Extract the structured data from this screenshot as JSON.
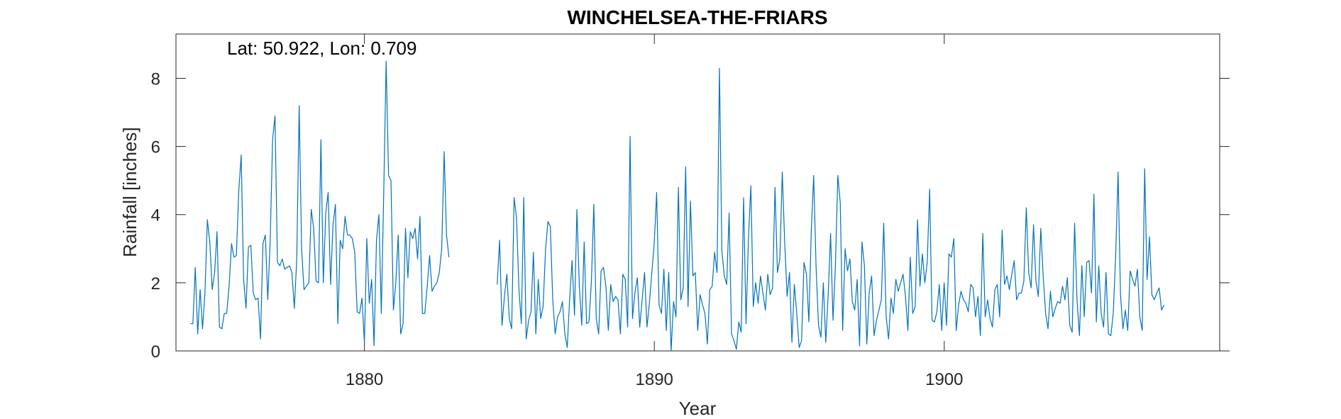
{
  "chart_data": {
    "type": "line",
    "title": "WINCHELSEA-THE-FRIARS",
    "xlabel": "Year",
    "ylabel": "Rainfall [inches]",
    "annotation": "Lat: 50.922, Lon: 0.709",
    "xlim": [
      1873.5,
      1909.5
    ],
    "ylim": [
      0,
      9.3
    ],
    "xticks": [
      1880,
      1890,
      1900
    ],
    "yticks": [
      0,
      2,
      4,
      6,
      8
    ],
    "grid": false,
    "line_color": "#0072BD",
    "series": [
      {
        "segments": [
          {
            "start": 1874.0,
            "step": 0.08333,
            "values": [
              0.8,
              0.8,
              2.45,
              0.5,
              1.8,
              0.65,
              1.7,
              3.85,
              3.2,
              1.8,
              2.3,
              3.5,
              0.7,
              0.65,
              1.1,
              1.1,
              1.9,
              3.15,
              2.75,
              2.8,
              4.7,
              5.75,
              2.1,
              1.25,
              3.05,
              3.1,
              1.7,
              1.5,
              1.55,
              0.35,
              3.15,
              3.4,
              1.5,
              3.2,
              6.2,
              6.9,
              2.6,
              2.5,
              2.7,
              2.4,
              2.45,
              2.5,
              2.3,
              1.25,
              2.7,
              7.2,
              3.0,
              1.8,
              1.9,
              2.0,
              4.15,
              3.6,
              2.05,
              2.0,
              6.2,
              2.0,
              4.05,
              4.65,
              1.95,
              3.7,
              4.3,
              0.8,
              3.25,
              3.0,
              3.95,
              3.4,
              3.4,
              3.3,
              2.9,
              1.15,
              1.1,
              1.55,
              0.25,
              3.3,
              1.4,
              2.1,
              0.15,
              3.25,
              4.0,
              1.1,
              4.65,
              8.5,
              5.15,
              5.0,
              1.2,
              2.0,
              3.4,
              0.5,
              0.8,
              3.6,
              2.15,
              3.5,
              3.3,
              3.6,
              2.7,
              3.95,
              1.1,
              1.1,
              1.9,
              2.8,
              1.75,
              1.9,
              2.0,
              2.3,
              3.0,
              5.85,
              3.4,
              2.75
            ]
          },
          {
            "start": 1884.58,
            "step": 0.08333,
            "values": [
              1.95,
              3.25,
              0.75,
              1.6,
              2.25,
              0.95,
              0.65,
              4.5,
              3.9,
              1.8,
              0.8,
              4.5,
              0.35,
              0.9,
              1.15,
              2.9,
              0.5,
              2.1,
              0.95,
              1.3,
              2.95,
              3.8,
              3.65,
              1.5,
              0.5,
              1.0,
              1.15,
              1.45,
              0.5,
              0.1,
              1.55,
              2.65,
              1.05,
              4.15,
              1.9,
              0.75,
              3.2,
              0.8,
              0.85,
              2.05,
              4.3,
              0.95,
              0.5,
              2.35,
              2.45,
              1.9,
              0.6,
              1.95,
              1.45,
              1.6,
              1.5,
              0.5,
              2.25,
              2.1,
              0.7,
              6.3,
              0.95,
              1.7,
              2.15,
              0.7,
              1.5,
              2.3,
              0.7,
              1.4,
              2.3,
              3.15,
              4.65,
              1.35,
              1.1,
              2.4,
              0.6,
              2.3,
              0.0,
              1.45,
              1.0,
              4.8,
              1.5,
              1.85,
              5.4,
              1.3,
              4.4,
              2.2,
              2.3,
              0.6,
              1.65,
              1.35,
              1.1,
              0.2,
              1.8,
              1.9,
              2.9,
              2.3,
              8.3,
              2.95,
              2.2,
              1.95,
              4.05,
              0.5,
              0.3,
              0.05,
              0.85,
              0.55,
              4.5,
              0.8,
              3.3,
              4.85,
              1.3,
              2.0,
              1.4,
              2.2,
              1.7,
              1.2,
              2.25,
              1.65,
              1.85,
              4.8,
              2.3,
              2.7,
              5.25,
              3.2,
              1.6,
              2.3,
              0.25,
              1.95,
              1.1,
              0.1,
              0.3,
              2.6,
              2.25,
              0.85,
              3.5,
              5.15,
              2.45,
              0.75,
              0.4,
              2.0,
              0.25,
              1.65,
              3.45,
              0.9,
              2.5,
              5.15,
              4.35,
              0.6,
              3.0,
              2.35,
              2.7,
              1.45,
              1.2,
              2.1,
              0.15,
              3.2,
              2.5,
              0.2,
              1.7,
              2.2,
              0.45,
              0.9,
              1.2,
              1.5,
              3.75,
              1.0,
              0.35,
              1.55,
              1.1,
              2.1,
              1.75,
              2.0,
              2.25,
              1.6,
              0.6,
              2.75,
              1.1,
              1.3,
              3.85,
              1.9,
              2.85,
              2.0,
              2.6,
              4.75,
              0.9,
              0.85,
              1.15,
              1.95,
              0.6,
              2.0,
              0.75,
              2.85,
              2.75,
              3.3,
              0.6,
              1.35,
              1.75,
              1.5,
              1.4,
              1.15,
              1.95,
              1.85,
              1.0,
              1.6,
              0.45,
              3.45,
              1.0,
              1.5,
              0.95,
              0.7,
              1.8,
              1.95,
              1.0,
              3.55,
              1.95,
              2.2,
              1.8,
              2.25,
              2.65,
              1.5,
              1.7,
              1.7,
              2.05,
              4.2,
              2.3,
              1.85,
              3.7,
              2.05,
              1.6,
              3.6,
              2.2,
              1.1,
              0.65,
              1.75,
              1.0,
              1.25,
              1.45,
              1.4,
              1.9,
              1.5,
              2.15,
              0.75,
              0.55,
              3.75,
              1.5,
              0.45,
              2.5,
              1.0,
              2.6,
              2.65,
              1.7,
              4.6,
              0.85,
              2.5,
              1.1,
              0.7,
              2.3,
              0.5,
              0.45,
              1.1,
              2.8,
              5.25,
              1.65,
              0.65,
              1.2,
              0.6,
              2.35,
              2.1,
              1.9,
              2.4,
              1.0,
              0.6,
              5.35,
              2.1,
              3.35,
              1.65,
              1.5,
              1.7,
              1.85,
              1.2,
              1.35
            ]
          }
        ]
      }
    ]
  }
}
